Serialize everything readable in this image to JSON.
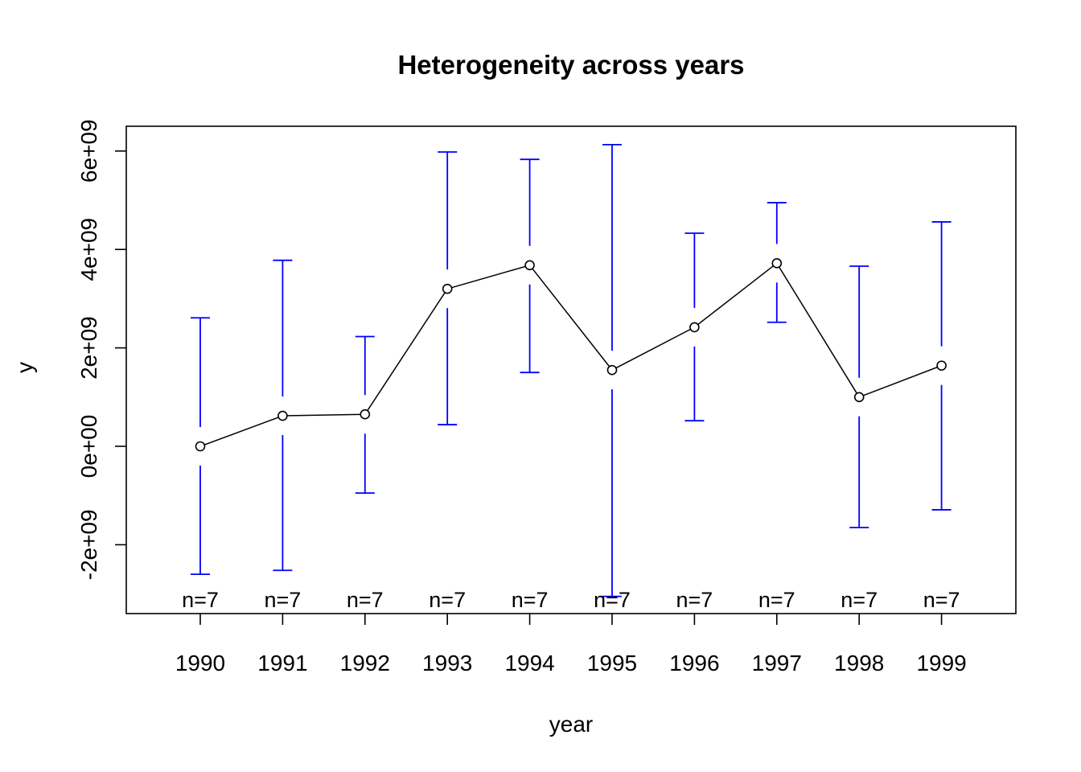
{
  "chart_data": {
    "type": "line",
    "title": "Heterogeneity across years",
    "xlabel": "year",
    "ylabel": "y",
    "categories": [
      "1990",
      "1991",
      "1992",
      "1993",
      "1994",
      "1995",
      "1996",
      "1997",
      "1998",
      "1999"
    ],
    "x_tick_labels": [
      "1990",
      "1991",
      "1992",
      "1993",
      "1994",
      "1995",
      "1996",
      "1997",
      "1998",
      "1999"
    ],
    "y_ticks": [
      -2000000000,
      0,
      2000000000,
      4000000000,
      6000000000
    ],
    "y_tick_labels": [
      "-2e+09",
      "0e+00",
      "2e+09",
      "4e+09",
      "6e+09"
    ],
    "ylim": [
      -3400000000,
      6500000000
    ],
    "series": [
      {
        "values": [
          0,
          620000000,
          650000000,
          3200000000,
          3680000000,
          1550000000,
          2420000000,
          3720000000,
          1000000000,
          1640000000
        ],
        "lower": [
          -2600000000,
          -2520000000,
          -950000000,
          440000000,
          1500000000,
          -3050000000,
          520000000,
          2520000000,
          -1650000000,
          -1290000000
        ],
        "upper": [
          2610000000,
          3780000000,
          2230000000,
          5980000000,
          5830000000,
          6130000000,
          4330000000,
          4950000000,
          3660000000,
          4560000000
        ],
        "line_color": "#000000",
        "error_bar_color": "#0000ff"
      }
    ],
    "n_labels": [
      "n=7",
      "n=7",
      "n=7",
      "n=7",
      "n=7",
      "n=7",
      "n=7",
      "n=7",
      "n=7",
      "n=7"
    ],
    "grid": false
  }
}
